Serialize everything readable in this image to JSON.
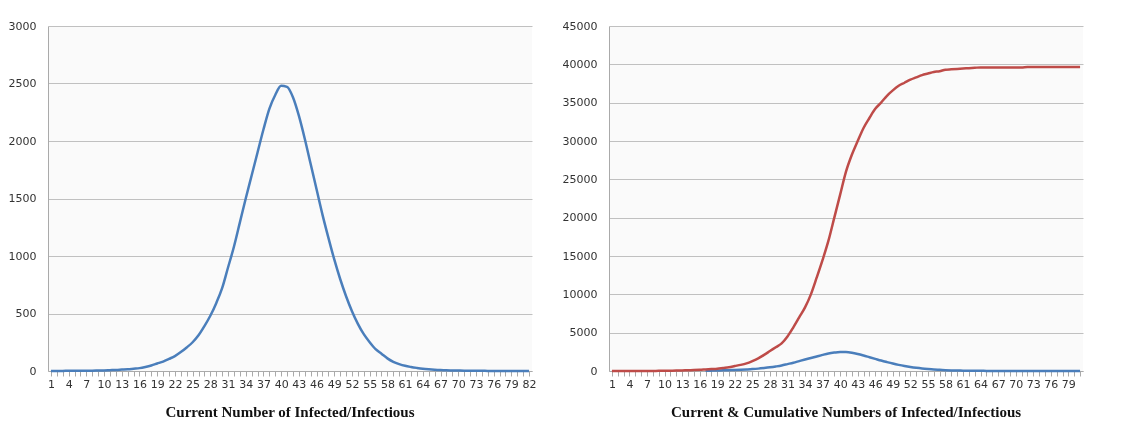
{
  "chart_data": [
    {
      "type": "line",
      "title": "Current Number of Infected/Infectious",
      "categories": [
        "1",
        null,
        null,
        "4",
        null,
        null,
        "7",
        null,
        null,
        "10",
        null,
        null,
        "13",
        null,
        null,
        "16",
        null,
        null,
        "19",
        null,
        null,
        "22",
        null,
        null,
        "25",
        null,
        null,
        "28",
        null,
        null,
        "31",
        null,
        null,
        "34",
        null,
        null,
        "37",
        null,
        null,
        "40",
        null,
        null,
        "43",
        null,
        null,
        "46",
        null,
        null,
        "49",
        null,
        null,
        "52",
        null,
        null,
        "55",
        null,
        null,
        "58",
        null,
        null,
        "61",
        null,
        null,
        "64",
        null,
        null,
        "67",
        null,
        null,
        "70",
        null,
        null,
        "73",
        null,
        null,
        "76",
        null,
        null,
        "79",
        null,
        null,
        "82"
      ],
      "series": [
        {
          "color": "#4a7ebb",
          "values": [
            0,
            1,
            1,
            2,
            2,
            2,
            3,
            3,
            4,
            5,
            7,
            9,
            12,
            15,
            20,
            25,
            35,
            48,
            65,
            82,
            105,
            130,
            165,
            205,
            250,
            310,
            390,
            480,
            590,
            720,
            900,
            1080,
            1290,
            1500,
            1700,
            1900,
            2100,
            2280,
            2400,
            2480,
            2470,
            2380,
            2220,
            2020,
            1800,
            1580,
            1360,
            1160,
            970,
            800,
            650,
            520,
            410,
            320,
            250,
            190,
            150,
            110,
            80,
            60,
            45,
            35,
            27,
            20,
            15,
            11,
            8,
            6,
            5,
            4,
            3,
            3,
            2,
            2,
            1,
            1,
            1,
            1,
            0,
            0,
            0,
            0
          ]
        }
      ],
      "ylim": [
        0,
        3000
      ],
      "yticks": [
        0,
        500,
        1000,
        1500,
        2000,
        2500,
        3000
      ],
      "grid": "y"
    },
    {
      "type": "line",
      "title": "Current & Cumulative Numbers of Infected/Infectious",
      "categories": [
        "1",
        null,
        null,
        "4",
        null,
        null,
        "7",
        null,
        null,
        "10",
        null,
        null,
        "13",
        null,
        null,
        "16",
        null,
        null,
        "19",
        null,
        null,
        "22",
        null,
        null,
        "25",
        null,
        null,
        "28",
        null,
        null,
        "31",
        null,
        null,
        "34",
        null,
        null,
        "37",
        null,
        null,
        "40",
        null,
        null,
        "43",
        null,
        null,
        "46",
        null,
        null,
        "49",
        null,
        null,
        "52",
        null,
        null,
        "55",
        null,
        null,
        "58",
        null,
        null,
        "61",
        null,
        null,
        "64",
        null,
        null,
        "67",
        null,
        null,
        "70",
        null,
        null,
        "73",
        null,
        null,
        "76",
        null,
        null,
        "79",
        null,
        null
      ],
      "series": [
        {
          "color": "#4a7ebb",
          "values": [
            null,
            null,
            null,
            null,
            null,
            null,
            null,
            null,
            null,
            null,
            null,
            null,
            null,
            null,
            null,
            null,
            35,
            48,
            65,
            82,
            105,
            130,
            165,
            205,
            250,
            310,
            390,
            480,
            590,
            720,
            900,
            1080,
            1290,
            1500,
            1700,
            1900,
            2100,
            2280,
            2400,
            2480,
            2470,
            2380,
            2220,
            2020,
            1800,
            1580,
            1360,
            1160,
            970,
            800,
            650,
            520,
            410,
            320,
            250,
            190,
            150,
            110,
            80,
            60,
            45,
            35,
            27,
            20,
            15,
            11,
            8,
            6,
            5,
            4,
            3,
            3,
            2,
            2,
            1,
            1,
            1,
            1,
            0,
            0,
            0
          ]
        },
        {
          "color": "#be4b48",
          "values": [
            0,
            0,
            0,
            0,
            0,
            0,
            0,
            10,
            20,
            30,
            40,
            60,
            80,
            100,
            120,
            150,
            200,
            250,
            300,
            400,
            500,
            650,
            800,
            1000,
            1300,
            1650,
            2100,
            2600,
            3100,
            3600,
            4500,
            5700,
            7000,
            8300,
            10000,
            12200,
            14500,
            17000,
            20000,
            23000,
            26000,
            28200,
            30000,
            31700,
            33000,
            34200,
            35000,
            35900,
            36600,
            37200,
            37600,
            38000,
            38300,
            38600,
            38800,
            39000,
            39100,
            39300,
            39350,
            39400,
            39450,
            39500,
            39550,
            39600,
            39600,
            39600,
            39600,
            39600,
            39600,
            39600,
            39600,
            39650,
            39650,
            39650,
            39650,
            39650,
            39650,
            39650,
            39650,
            39650,
            39650
          ]
        }
      ],
      "ylim": [
        0,
        45000
      ],
      "yticks": [
        0,
        5000,
        10000,
        15000,
        20000,
        25000,
        30000,
        35000,
        40000,
        45000
      ],
      "grid": "y"
    }
  ]
}
